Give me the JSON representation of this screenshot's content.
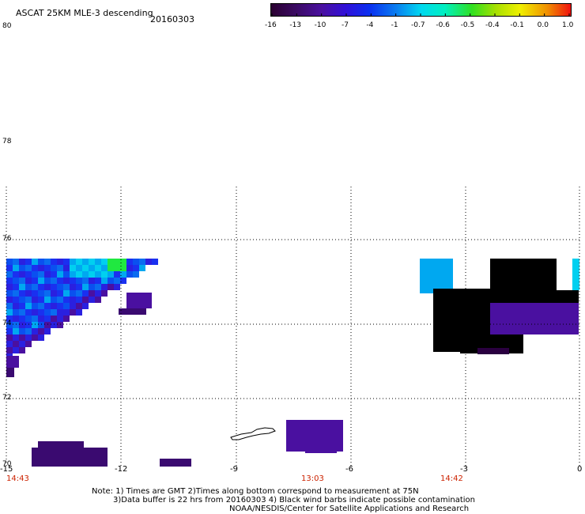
{
  "title": "ASCAT 25KM MLE-3 descending",
  "date": "20160303",
  "y_labels": [
    "80",
    "78",
    "76",
    "74",
    "72",
    "70"
  ],
  "x_labels": [
    "-15",
    "-12",
    "-9",
    "-6",
    "-3",
    "0"
  ],
  "time_labels": [
    "14:43",
    "13:03",
    "14:42"
  ],
  "colorbar": {
    "labels": [
      "-16",
      "-13",
      "-10",
      "-7",
      "-4",
      "-1",
      "-0.7",
      "-0.6",
      "-0.5",
      "-0.4",
      "-0.1",
      "0.0",
      "1.0"
    ],
    "colors": [
      "#2a0030",
      "#4a0a6e",
      "#3a10c8",
      "#0a28f0",
      "#0a6cf0",
      "#00b0f0",
      "#00e8e8",
      "#20e890",
      "#30e020",
      "#a0e000",
      "#f0f000",
      "#f0a000",
      "#f04010"
    ]
  },
  "notes": {
    "line1": "Note: 1) Times are GMT 2)Times along bottom correspond to measurement at 75N",
    "line2": "3)Data buffer is 22 hrs from 20160303 4) Black wind barbs indicate possible contamination",
    "line3": "NOAA/NESDIS/Center for Satellite Applications and Research"
  },
  "map_data": {
    "lon_range": [
      -15,
      0
    ],
    "lat_range": [
      70,
      80
    ],
    "grid": true
  }
}
